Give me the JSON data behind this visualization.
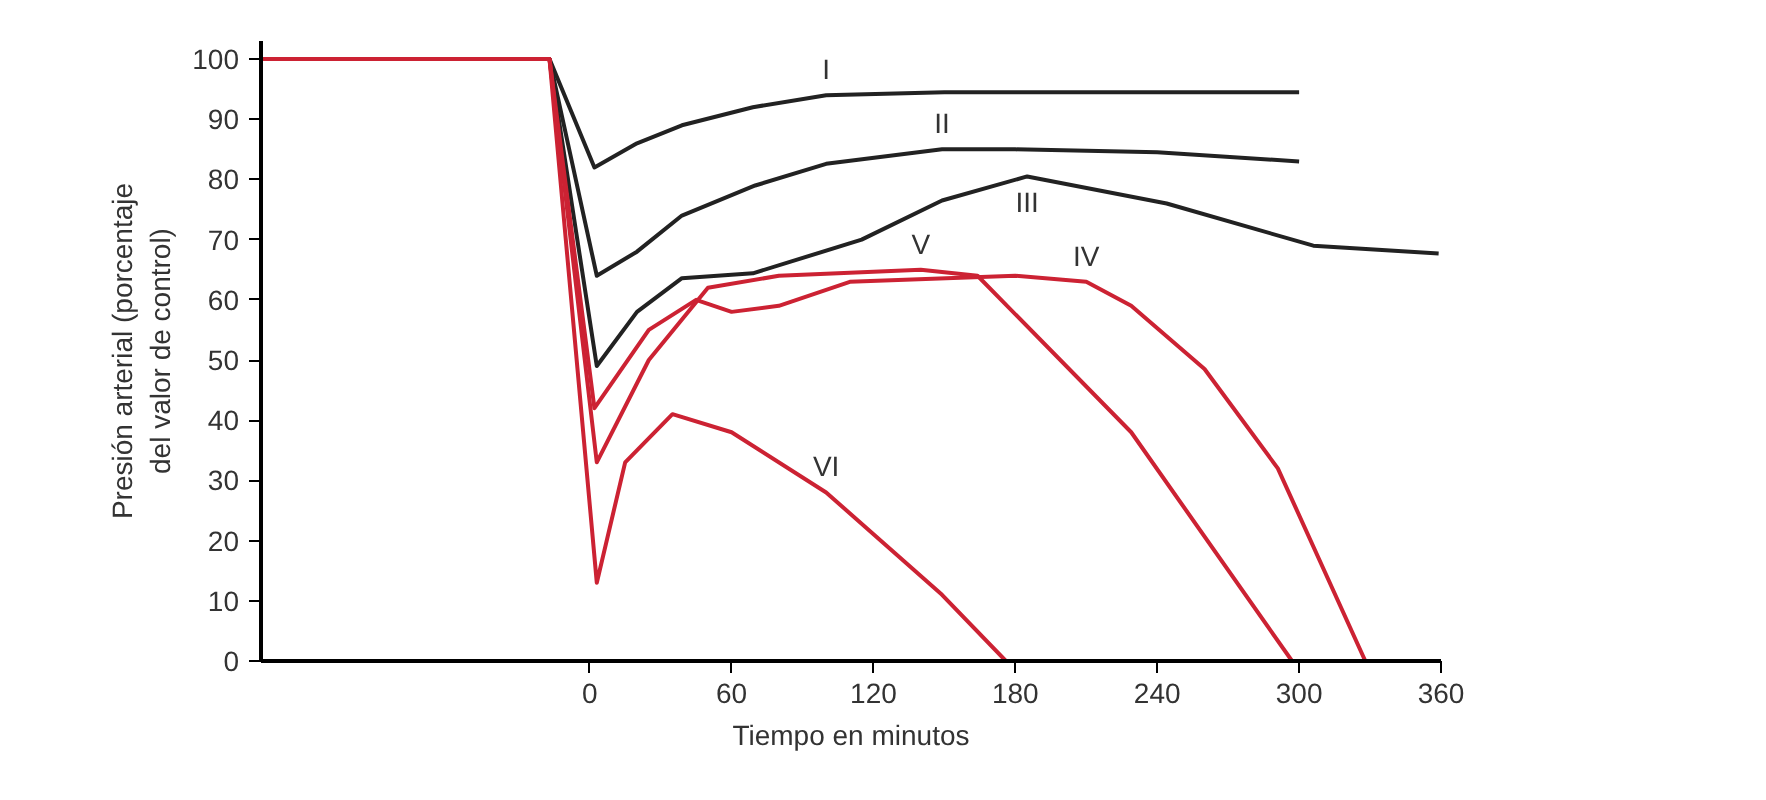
{
  "chart_data": {
    "type": "line",
    "xlabel": "Tiempo en minutos",
    "ylabel": "Presión arterial (porcentaje\ndel valor de control)",
    "xlim": [
      -139,
      360
    ],
    "ylim": [
      0,
      103
    ],
    "xticks": [
      0,
      60,
      120,
      180,
      240,
      300,
      360
    ],
    "yticks": [
      0,
      10,
      20,
      30,
      40,
      50,
      60,
      70,
      80,
      90,
      100
    ],
    "grid": false,
    "marker": "none",
    "line_style": "solid",
    "series": [
      {
        "name": "I",
        "color": "#222222",
        "x": [
          -139,
          -17,
          2,
          20,
          39,
          69,
          100,
          150,
          200,
          300
        ],
        "values": [
          100,
          100,
          82,
          86,
          89,
          92,
          94,
          94.5,
          94.5,
          94.5
        ]
      },
      {
        "name": "II",
        "color": "#222222",
        "x": [
          -139,
          -17,
          3,
          20,
          39,
          70,
          100,
          149,
          180,
          240,
          300
        ],
        "values": [
          100,
          100,
          64,
          68,
          74,
          79,
          82.6,
          85,
          85,
          84.5,
          83
        ]
      },
      {
        "name": "III",
        "color": "#222222",
        "x": [
          -139,
          -17,
          3,
          20,
          39,
          69,
          115,
          149,
          185,
          244,
          306,
          359
        ],
        "values": [
          100,
          100,
          49,
          58,
          63.6,
          64.4,
          70,
          76.5,
          80.5,
          76,
          69,
          67.7
        ]
      },
      {
        "name": "IV",
        "color": "#cc2233",
        "x": [
          -139,
          -17,
          2,
          25,
          45,
          60,
          80,
          110,
          180,
          210,
          229,
          260,
          291,
          328
        ],
        "values": [
          100,
          100,
          42,
          55,
          60,
          58,
          59,
          63,
          64,
          63,
          59,
          48.5,
          32,
          0
        ]
      },
      {
        "name": "V",
        "color": "#cc2233",
        "x": [
          -139,
          -17,
          3,
          25,
          50,
          80,
          140,
          164,
          229,
          297
        ],
        "values": [
          100,
          100,
          33,
          50,
          62,
          64,
          65,
          64,
          38,
          0
        ]
      },
      {
        "name": "VI",
        "color": "#cc2233",
        "x": [
          -139,
          -17,
          3,
          15,
          35,
          60,
          100,
          149,
          176
        ],
        "values": [
          100,
          100,
          13,
          33,
          41,
          38,
          28,
          11,
          0
        ]
      }
    ]
  }
}
